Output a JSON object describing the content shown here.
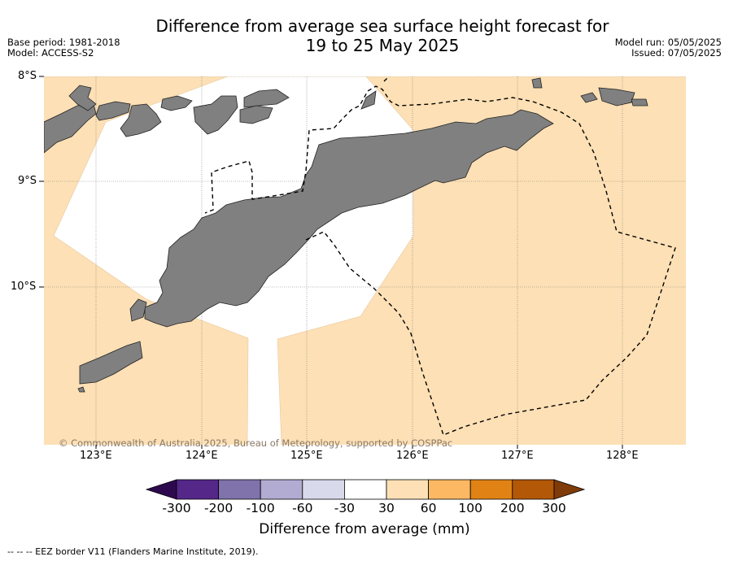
{
  "title_line1": "Difference from average sea surface height forecast for",
  "title_line2": "19 to 25 May 2025",
  "meta_left": {
    "base_period": "Base period: 1981-2018",
    "model": "Model: ACCESS-S2"
  },
  "meta_right": {
    "model_run": "Model run: 05/05/2025",
    "issued": "Issued: 07/05/2025"
  },
  "map": {
    "lon_range": [
      122.5,
      128.6
    ],
    "lat_range": [
      -11.5,
      -8.0
    ],
    "lat_ticks": [
      {
        "value": -8,
        "label": "8°S"
      },
      {
        "value": -9,
        "label": "9°S"
      },
      {
        "value": -10,
        "label": "10°S"
      }
    ],
    "lon_ticks": [
      {
        "value": 123,
        "label": "123°E"
      },
      {
        "value": 124,
        "label": "124°E"
      },
      {
        "value": 125,
        "label": "125°E"
      },
      {
        "value": 126,
        "label": "126°E"
      },
      {
        "value": 127,
        "label": "127°E"
      },
      {
        "value": 128,
        "label": "128°E"
      }
    ],
    "gridlines": true,
    "ocean_anomaly_class": "30 to 60",
    "neutral_class": "-30 to 30",
    "colors": {
      "land": "#808080",
      "anomaly_30_60": "#fde0b5",
      "neutral": "#ffffff",
      "border": "#000000",
      "grid": "#777777"
    }
  },
  "copyright": "© Commonwealth of Australia 2025, Bureau of Meteorology, supported by COSPPac",
  "colorbar": {
    "labels": [
      "-300",
      "-200",
      "-100",
      "-60",
      "-30",
      "30",
      "60",
      "100",
      "200",
      "300"
    ],
    "colors": [
      "#2d0a4e",
      "#542788",
      "#8073ac",
      "#b2abd2",
      "#d8daeb",
      "#ffffff",
      "#fee0b6",
      "#fdb863",
      "#e08214",
      "#b35806",
      "#7f3b08"
    ],
    "title": "Difference from average (mm)"
  },
  "footnote": "-- -- -- EEZ border V11 (Flanders Marine Institute, 2019)."
}
